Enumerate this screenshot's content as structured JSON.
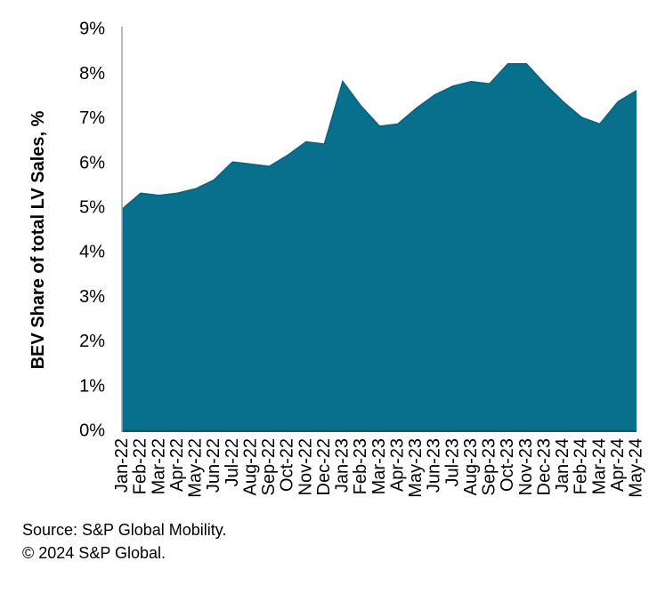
{
  "chart_data": {
    "type": "area",
    "title": "",
    "xlabel": "",
    "ylabel": "BEV Share of total LV Sales, %",
    "categories": [
      "Jan-22",
      "Feb-22",
      "Mar-22",
      "Apr-22",
      "May-22",
      "Jun-22",
      "Jul-22",
      "Aug-22",
      "Sep-22",
      "Oct-22",
      "Nov-22",
      "Dec-22",
      "Jan-23",
      "Feb-23",
      "Mar-23",
      "Apr-23",
      "May-23",
      "Jun-23",
      "Jul-23",
      "Aug-23",
      "Sep-23",
      "Oct-23",
      "Nov-23",
      "Dec-23",
      "Jan-24",
      "Feb-24",
      "Mar-24",
      "Apr-24",
      "May-24"
    ],
    "values": [
      4.95,
      5.3,
      5.25,
      5.3,
      5.4,
      5.6,
      6.0,
      5.95,
      5.9,
      6.15,
      6.45,
      6.4,
      7.8,
      7.25,
      6.8,
      6.85,
      7.2,
      7.5,
      7.7,
      7.8,
      7.75,
      8.2,
      8.2,
      7.75,
      7.35,
      7.0,
      6.85,
      7.35,
      7.6
    ],
    "ylim": [
      0,
      9
    ],
    "ytick_labels": [
      "0%",
      "1%",
      "2%",
      "3%",
      "4%",
      "5%",
      "6%",
      "7%",
      "8%",
      "9%"
    ],
    "grid": false,
    "legend": "none",
    "colors": {
      "area_fill": "#086f8c",
      "area_edge": "#0c6580",
      "baseline_edge": "#11596f",
      "axis_line": "#a3a3a3",
      "text": "#000000"
    }
  },
  "footer": {
    "source_line": "Source: S&P Global Mobility.",
    "copyright_line": "© 2024 S&P Global."
  }
}
